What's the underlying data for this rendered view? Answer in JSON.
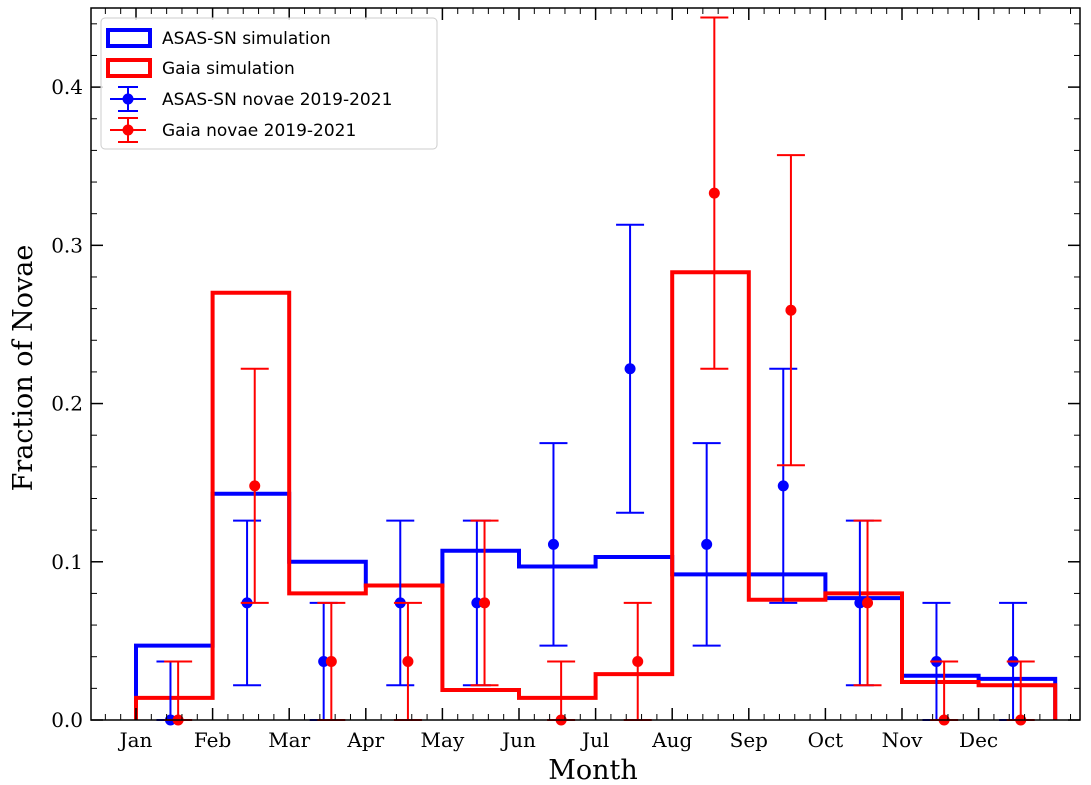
{
  "chart_data": {
    "type": "step+errorbar",
    "xlabel": "Month",
    "ylabel": "Fraction of Novae",
    "ylim": [
      0,
      0.45
    ],
    "yticks": [
      "0.0",
      "0.1",
      "0.2",
      "0.3",
      "0.4"
    ],
    "categories": [
      "Jan",
      "Feb",
      "Mar",
      "Apr",
      "May",
      "Jun",
      "Jul",
      "Aug",
      "Sep",
      "Oct",
      "Nov",
      "Dec"
    ],
    "legend_position": "upper-left",
    "colors": {
      "asas": "#0000ff",
      "gaia": "#ff0000"
    },
    "series": [
      {
        "name": "ASAS-SN simulation",
        "kind": "step",
        "color": "#0000ff",
        "values": [
          0.047,
          0.143,
          0.1,
          0.085,
          0.107,
          0.097,
          0.103,
          0.092,
          0.092,
          0.077,
          0.028,
          0.026
        ]
      },
      {
        "name": "Gaia simulation",
        "kind": "step",
        "color": "#ff0000",
        "values": [
          0.014,
          0.27,
          0.08,
          0.085,
          0.019,
          0.014,
          0.029,
          0.283,
          0.076,
          0.08,
          0.024,
          0.022
        ]
      },
      {
        "name": "ASAS-SN novae 2019-2021",
        "kind": "errorbar",
        "color": "#0000ff",
        "x_month_positions": [
          0.5,
          1.5,
          2.5,
          3.5,
          4.5,
          5.5,
          6.5,
          7.5,
          8.5,
          9.5,
          10.5,
          11.5
        ],
        "y": [
          0.0,
          0.074,
          0.037,
          0.074,
          0.074,
          0.111,
          0.222,
          0.111,
          0.148,
          0.074,
          0.037,
          0.037
        ],
        "yerr_low": [
          0.037,
          0.052,
          0.037,
          0.052,
          0.052,
          0.064,
          0.091,
          0.064,
          0.074,
          0.052,
          0.037,
          0.037
        ],
        "yerr_high": [
          0.037,
          0.052,
          0.037,
          0.052,
          0.052,
          0.064,
          0.091,
          0.064,
          0.074,
          0.052,
          0.037,
          0.037
        ]
      },
      {
        "name": "Gaia novae 2019-2021",
        "kind": "errorbar",
        "color": "#ff0000",
        "x_month_positions": [
          0.5,
          1.5,
          2.5,
          3.5,
          4.5,
          5.5,
          6.5,
          7.5,
          8.5,
          9.5,
          10.5,
          11.5
        ],
        "y": [
          0.0,
          0.148,
          0.037,
          0.037,
          0.074,
          0.0,
          0.037,
          0.333,
          0.259,
          0.074,
          0.0,
          0.0
        ],
        "yerr_low": [
          0.037,
          0.074,
          0.037,
          0.037,
          0.052,
          0.037,
          0.037,
          0.111,
          0.098,
          0.052,
          0.037,
          0.037
        ],
        "yerr_high": [
          0.037,
          0.074,
          0.037,
          0.037,
          0.052,
          0.037,
          0.037,
          0.111,
          0.098,
          0.052,
          0.037,
          0.037
        ]
      }
    ]
  }
}
